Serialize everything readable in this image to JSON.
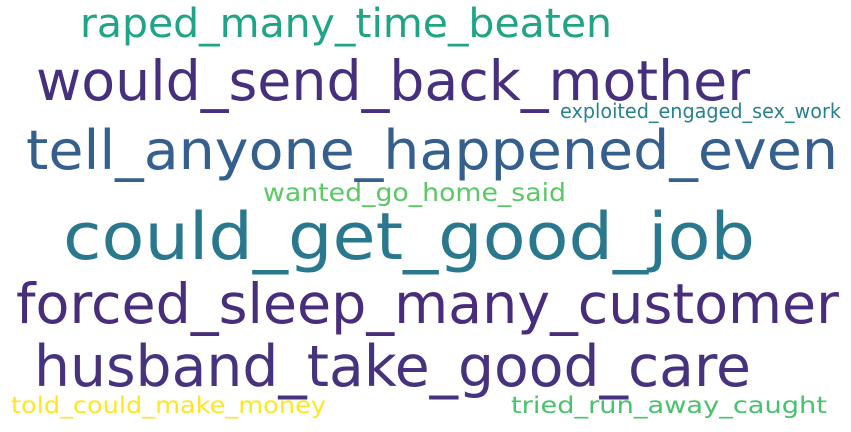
{
  "word_cloud": {
    "words": [
      {
        "text": "raped_many_time_beaten",
        "color": "#20a486"
      },
      {
        "text": "would_send_back_mother",
        "color": "#462f7c"
      },
      {
        "text": "exploited_engaged_sex_work",
        "color": "#26828e"
      },
      {
        "text": "tell_anyone_happened_even",
        "color": "#355f8d"
      },
      {
        "text": "wanted_go_home_said",
        "color": "#5ac864"
      },
      {
        "text": "could_get_good_job",
        "color": "#2a788e"
      },
      {
        "text": "forced_sleep_many_customer",
        "color": "#472d7b"
      },
      {
        "text": "husband_take_good_care",
        "color": "#46327e"
      },
      {
        "text": "told_could_make_money",
        "color": "#fde725"
      },
      {
        "text": "tried_run_away_caught",
        "color": "#4ac16d"
      }
    ]
  }
}
